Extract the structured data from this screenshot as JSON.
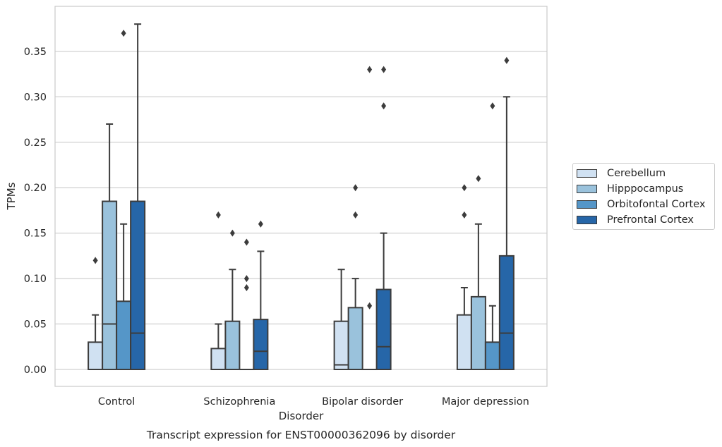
{
  "chart_data": {
    "type": "boxplot",
    "title": "Transcript expression for ENST00000362096 by disorder",
    "xlabel": "Disorder",
    "ylabel": "TPMs",
    "ylim": [
      -0.018,
      0.398
    ],
    "yticks": [
      "0.00",
      "0.05",
      "0.10",
      "0.15",
      "0.20",
      "0.25",
      "0.30",
      "0.35"
    ],
    "grid": "horizontal",
    "legend_position": "right",
    "categories": [
      "Control",
      "Schizophrenia",
      "Bipolar disorder",
      "Major depression"
    ],
    "series": [
      {
        "name": "Cerebellum",
        "color": "#d0e1f2",
        "boxes": [
          {
            "q1": 0.0,
            "median": 0.0,
            "q3": 0.03,
            "whisker_low": 0.0,
            "whisker_high": 0.06,
            "outliers": [
              0.12
            ]
          },
          {
            "q1": 0.0,
            "median": 0.0,
            "q3": 0.023,
            "whisker_low": 0.0,
            "whisker_high": 0.05,
            "outliers": [
              0.17
            ]
          },
          {
            "q1": 0.0,
            "median": 0.005,
            "q3": 0.053,
            "whisker_low": 0.0,
            "whisker_high": 0.11,
            "outliers": []
          },
          {
            "q1": 0.0,
            "median": 0.0,
            "q3": 0.06,
            "whisker_low": 0.0,
            "whisker_high": 0.09,
            "outliers": [
              0.17,
              0.2
            ]
          }
        ]
      },
      {
        "name": "Hipppocampus",
        "color": "#9ac2dc",
        "boxes": [
          {
            "q1": 0.0,
            "median": 0.05,
            "q3": 0.185,
            "whisker_low": 0.0,
            "whisker_high": 0.27,
            "outliers": []
          },
          {
            "q1": 0.0,
            "median": 0.0,
            "q3": 0.053,
            "whisker_low": 0.0,
            "whisker_high": 0.11,
            "outliers": [
              0.15
            ]
          },
          {
            "q1": 0.0,
            "median": 0.0,
            "q3": 0.068,
            "whisker_low": 0.0,
            "whisker_high": 0.1,
            "outliers": [
              0.17,
              0.2
            ]
          },
          {
            "q1": 0.0,
            "median": 0.0,
            "q3": 0.08,
            "whisker_low": 0.0,
            "whisker_high": 0.16,
            "outliers": [
              0.21
            ]
          }
        ]
      },
      {
        "name": "Orbitofontal Cortex",
        "color": "#5596c8",
        "boxes": [
          {
            "q1": 0.0,
            "median": 0.0,
            "q3": 0.075,
            "whisker_low": 0.0,
            "whisker_high": 0.16,
            "outliers": [
              0.37
            ]
          },
          {
            "q1": 0.0,
            "median": 0.0,
            "q3": 0.0,
            "whisker_low": 0.0,
            "whisker_high": 0.0,
            "outliers": [
              0.09,
              0.1,
              0.14
            ]
          },
          {
            "q1": 0.0,
            "median": 0.0,
            "q3": 0.0,
            "whisker_low": 0.0,
            "whisker_high": 0.0,
            "outliers": [
              0.07,
              0.33
            ]
          },
          {
            "q1": 0.0,
            "median": 0.0,
            "q3": 0.03,
            "whisker_low": 0.0,
            "whisker_high": 0.07,
            "outliers": [
              0.29
            ]
          }
        ]
      },
      {
        "name": "Prefrontal Cortex",
        "color": "#2666a8",
        "boxes": [
          {
            "q1": 0.0,
            "median": 0.04,
            "q3": 0.185,
            "whisker_low": 0.0,
            "whisker_high": 0.38,
            "outliers": []
          },
          {
            "q1": 0.0,
            "median": 0.02,
            "q3": 0.055,
            "whisker_low": 0.0,
            "whisker_high": 0.13,
            "outliers": [
              0.16
            ]
          },
          {
            "q1": 0.0,
            "median": 0.025,
            "q3": 0.088,
            "whisker_low": 0.0,
            "whisker_high": 0.15,
            "outliers": [
              0.29,
              0.33
            ]
          },
          {
            "q1": 0.0,
            "median": 0.04,
            "q3": 0.125,
            "whisker_low": 0.0,
            "whisker_high": 0.3,
            "outliers": [
              0.34
            ]
          }
        ]
      }
    ]
  }
}
